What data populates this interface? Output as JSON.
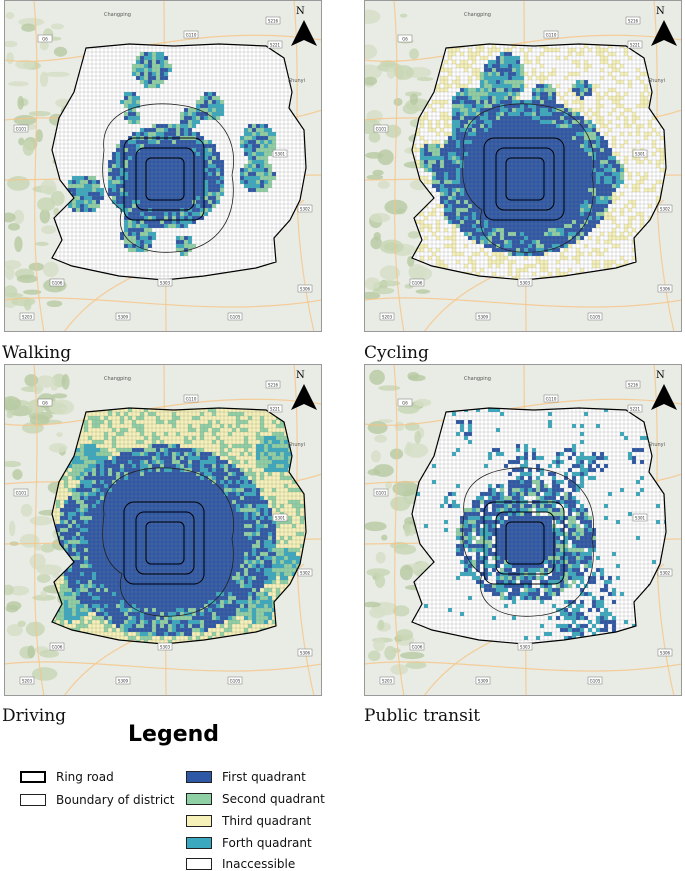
{
  "colors": {
    "first": "#2e57a6",
    "second": "#8fd0a4",
    "third": "#f5f1b8",
    "fourth": "#3aa9bf",
    "inaccessible": "#ffffff",
    "grid": "#8a8a8a",
    "background": "#e9ece4"
  },
  "map_labels": {
    "north": "N",
    "town_top": "Changping",
    "town_right": "Shunyi",
    "road_labels": [
      "G6",
      "G110",
      "S216",
      "S221",
      "G101",
      "S301",
      "S302",
      "S303",
      "S309",
      "G105",
      "G106",
      "S306",
      "S203"
    ]
  },
  "panels": [
    {
      "id": "walking",
      "caption": "Walking",
      "pattern": "walking"
    },
    {
      "id": "cycling",
      "caption": "Cycling",
      "pattern": "cycling"
    },
    {
      "id": "driving",
      "caption": "Driving",
      "pattern": "driving"
    },
    {
      "id": "transit",
      "caption": "Public transit",
      "pattern": "transit"
    }
  ],
  "legend": {
    "title": "Legend",
    "items": [
      {
        "key": "ring",
        "label": "Ring road"
      },
      {
        "key": "boundary",
        "label": "Boundary of district"
      },
      {
        "key": "first",
        "label": "First quadrant"
      },
      {
        "key": "second",
        "label": "Second quadrant"
      },
      {
        "key": "third",
        "label": "Third quadrant"
      },
      {
        "key": "fourth",
        "label": "Forth quadrant"
      },
      {
        "key": "inaccessible",
        "label": "Inaccessible"
      }
    ]
  }
}
